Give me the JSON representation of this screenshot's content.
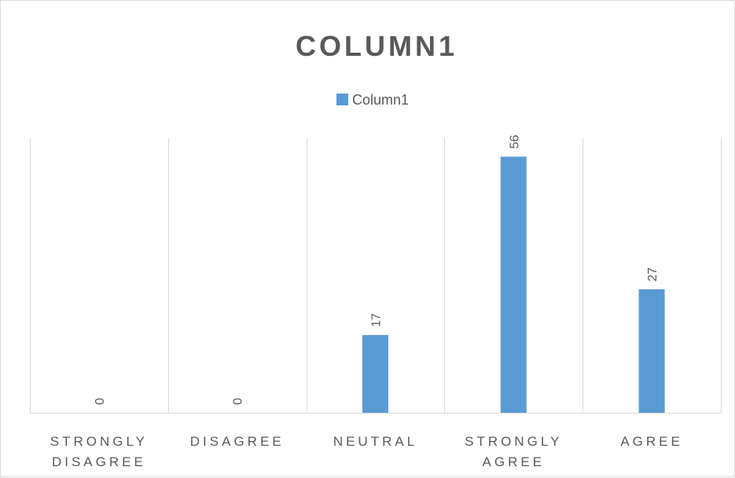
{
  "chart_data": {
    "type": "bar",
    "title": "COLUMN1",
    "legend": {
      "position": "top",
      "entries": [
        "Column1"
      ]
    },
    "categories": [
      [
        "STRONGLY",
        "DISAGREE"
      ],
      [
        "DISAGREE"
      ],
      [
        "NEUTRAL"
      ],
      [
        "STRONGLY",
        "AGREE"
      ],
      [
        "AGREE"
      ]
    ],
    "series": [
      {
        "name": "Column1",
        "values": [
          0,
          0,
          17,
          56,
          27
        ],
        "color": "#5b9bd5"
      }
    ],
    "ylim": [
      0,
      60
    ],
    "grid": "vertical-category-dividers",
    "data_labels": "rotated-vertical"
  }
}
